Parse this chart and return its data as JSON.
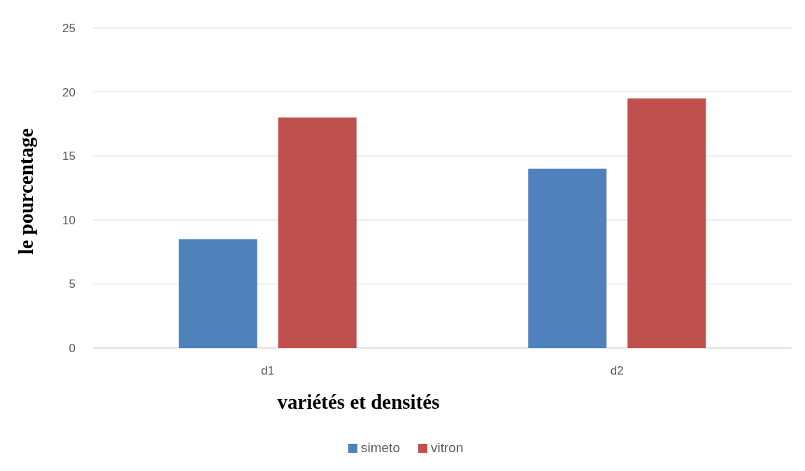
{
  "chart_data": {
    "type": "bar",
    "xlabel": "variétés et densités",
    "ylabel": "le pourcentage",
    "categories": [
      "d1",
      "d2"
    ],
    "series": [
      {
        "name": "simeto",
        "color": "#4f81bd",
        "values": [
          8.5,
          14
        ]
      },
      {
        "name": "vitron",
        "color": "#c0504d",
        "values": [
          18,
          19.5
        ]
      }
    ],
    "ylim": [
      0,
      25
    ],
    "yticks": [
      0,
      5,
      10,
      15,
      20,
      25
    ],
    "grid": "y",
    "legend": "bottom"
  }
}
